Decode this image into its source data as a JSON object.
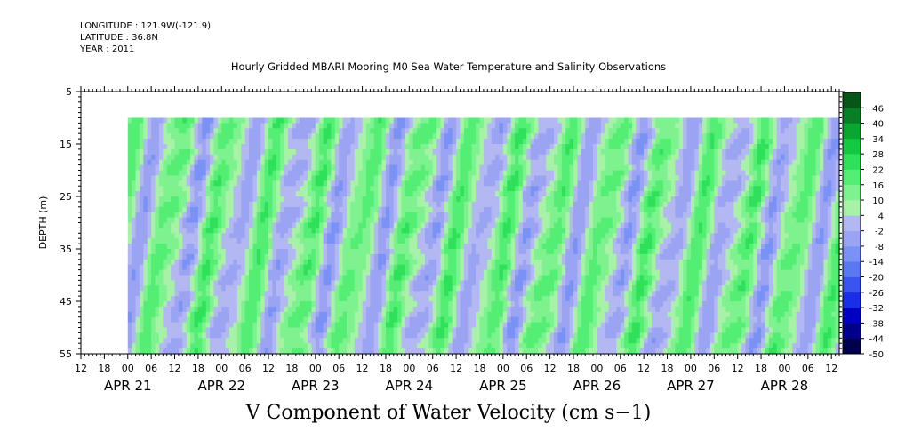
{
  "header": {
    "longitude": "LONGITUDE : 121.9W(-121.9)",
    "latitude": "LATITUDE : 36.8N",
    "year": "YEAR : 2011",
    "title": "Hourly Gridded MBARI Mooring M0 Sea Water Temperature and Salinity Observations"
  },
  "chart_data": {
    "type": "heatmap",
    "title": "Hourly Gridded MBARI Mooring M0 Sea Water Temperature and Salinity Observations",
    "variable_label": "V Component of Water Velocity (cm s-1)",
    "ylabel": "DEPTH (m)",
    "y_axis": {
      "range": [
        5,
        55
      ],
      "inverted": true,
      "ticks": [
        5,
        15,
        25,
        35,
        45,
        55
      ]
    },
    "x_axis": {
      "start": "2011-04-20 12:00",
      "end": "2011-04-28 14:00",
      "hour_tick_labels": [
        "12",
        "18",
        "00",
        "06",
        "12",
        "18",
        "00",
        "06",
        "12",
        "18",
        "00",
        "06",
        "12",
        "18",
        "00",
        "06",
        "12",
        "18",
        "00",
        "06",
        "12",
        "18",
        "00",
        "06",
        "12",
        "18",
        "00",
        "06",
        "12",
        "18",
        "00",
        "06",
        "12"
      ],
      "date_labels": [
        {
          "label": "APR 21",
          "date": "2011-04-21"
        },
        {
          "label": "APR 22",
          "date": "2011-04-22"
        },
        {
          "label": "APR 23",
          "date": "2011-04-23"
        },
        {
          "label": "APR 24",
          "date": "2011-04-24"
        },
        {
          "label": "APR 25",
          "date": "2011-04-25"
        },
        {
          "label": "APR 26",
          "date": "2011-04-26"
        },
        {
          "label": "APR 27",
          "date": "2011-04-27"
        },
        {
          "label": "APR 28",
          "date": "2011-04-28"
        }
      ]
    },
    "data_coverage": {
      "time_start": "2011-04-21 00:00",
      "time_end": "2011-04-28 14:00",
      "depth_min": 10,
      "depth_max": 55
    },
    "colorbar": {
      "levels": [
        -50,
        -44,
        -38,
        -32,
        -26,
        -20,
        -14,
        -8,
        -2,
        4,
        10,
        16,
        22,
        28,
        34,
        40,
        46
      ],
      "tick_labels": [
        "46",
        "40",
        "34",
        "28",
        "22",
        "16",
        "10",
        "4",
        "-2",
        "-8",
        "-14",
        "-20",
        "-26",
        "-32",
        "-38",
        "-44",
        "-50"
      ],
      "colors": [
        "#00004d",
        "#00008a",
        "#0000c2",
        "#1a2ee6",
        "#3a55ee",
        "#5a78f2",
        "#7a92f5",
        "#9aa4f2",
        "#b4b8f2",
        "#a8f2a8",
        "#7ef28e",
        "#55ee74",
        "#2ee05a",
        "#14c842",
        "#0aa632",
        "#087e26",
        "#06561a"
      ]
    },
    "field_description": "alternating diagonal bands of positive (green) and negative (blue) velocity roughly every 12 hours, values mostly between -14 and 28 cm/s"
  },
  "footer": {
    "label": "V Component of Water Velocity (cm s−1)"
  }
}
